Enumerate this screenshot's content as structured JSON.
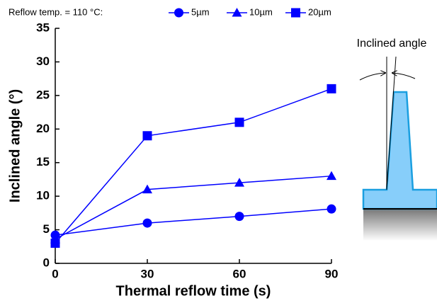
{
  "chart_data": {
    "type": "line",
    "legend_title": "Reflow temp. = 110 °C:",
    "x_label": "Thermal reflow time (s)",
    "y_label": "Inclined angle (°)",
    "x": [
      0,
      30,
      60,
      90
    ],
    "xlim": [
      0,
      90
    ],
    "xticks": [
      0,
      30,
      60,
      90
    ],
    "ylim": [
      0,
      35
    ],
    "yticks": [
      0,
      5,
      10,
      15,
      20,
      25,
      30,
      35
    ],
    "series": [
      {
        "name": "5µm",
        "color": "#0000ff",
        "marker": "circle",
        "values": [
          4.2,
          6,
          7,
          8.1
        ]
      },
      {
        "name": "10µm",
        "color": "#0000ff",
        "marker": "triangle",
        "values": [
          3.6,
          11,
          12,
          13
        ]
      },
      {
        "name": "20µm",
        "color": "#0000ff",
        "marker": "square",
        "values": [
          3.0,
          19,
          21,
          26
        ]
      }
    ]
  },
  "diagram": {
    "label": "Inclined angle"
  }
}
